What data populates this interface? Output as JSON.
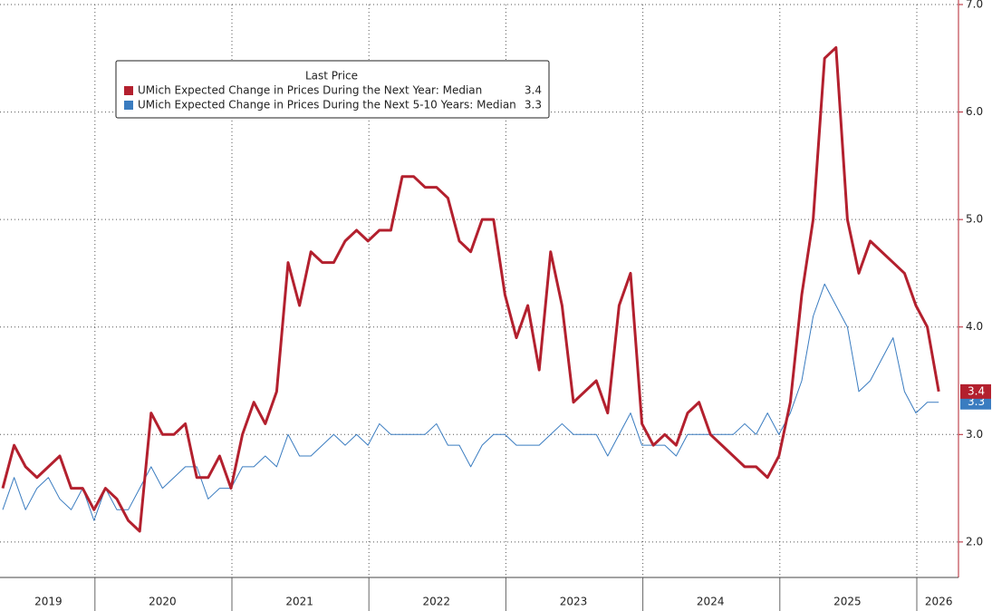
{
  "chart_data": {
    "type": "line",
    "categories": [
      null,
      null,
      null,
      null,
      "2019",
      null,
      null,
      null,
      null,
      null,
      null,
      null,
      null,
      null,
      "2020",
      null,
      null,
      null,
      null,
      null,
      null,
      null,
      null,
      null,
      null,
      null,
      "2021",
      null,
      null,
      null,
      null,
      null,
      null,
      null,
      null,
      null,
      null,
      null,
      "2022",
      null,
      null,
      null,
      null,
      null,
      null,
      null,
      null,
      null,
      null,
      null,
      "2023",
      null,
      null,
      null,
      null,
      null,
      null,
      null,
      null,
      null,
      null,
      null,
      "2024",
      null,
      null,
      null,
      null,
      null,
      null,
      null,
      null,
      null,
      null,
      null,
      "2025",
      null,
      null,
      null,
      null,
      null,
      null,
      null,
      "2026"
    ],
    "series": [
      {
        "name": "UMich Expected Change in Prices During the Next Year: Median",
        "color": "#b3202e",
        "values": [
          2.5,
          2.9,
          2.7,
          2.6,
          2.7,
          2.8,
          2.5,
          2.5,
          2.3,
          2.5,
          2.4,
          2.2,
          2.1,
          3.2,
          3.0,
          3.0,
          3.1,
          2.6,
          2.6,
          2.8,
          2.5,
          3.0,
          3.3,
          3.1,
          3.4,
          4.6,
          4.2,
          4.7,
          4.6,
          4.6,
          4.8,
          4.9,
          4.8,
          4.9,
          4.9,
          5.4,
          5.4,
          5.3,
          5.3,
          5.2,
          4.8,
          4.7,
          5.0,
          5.0,
          4.3,
          3.9,
          4.2,
          3.6,
          4.7,
          4.2,
          3.3,
          3.4,
          3.5,
          3.2,
          4.2,
          4.5,
          3.1,
          2.9,
          3.0,
          2.9,
          3.2,
          3.3,
          3.0,
          2.9,
          2.8,
          2.7,
          2.7,
          2.6,
          2.8,
          3.3,
          4.3,
          5.0,
          6.5,
          6.6,
          5.0,
          4.5,
          4.8,
          4.7,
          4.6,
          4.5,
          4.2,
          4.0,
          3.4
        ]
      },
      {
        "name": "UMich Expected Change in Prices During the Next 5-10 Years: Median",
        "color": "#3a7cc0",
        "values": [
          2.3,
          2.6,
          2.3,
          2.5,
          2.6,
          2.4,
          2.3,
          2.5,
          2.2,
          2.5,
          2.3,
          2.3,
          2.5,
          2.7,
          2.5,
          2.6,
          2.7,
          2.7,
          2.4,
          2.5,
          2.5,
          2.7,
          2.7,
          2.8,
          2.7,
          3.0,
          2.8,
          2.8,
          2.9,
          3.0,
          2.9,
          3.0,
          2.9,
          3.1,
          3.0,
          3.0,
          3.0,
          3.0,
          3.1,
          2.9,
          2.9,
          2.7,
          2.9,
          3.0,
          3.0,
          2.9,
          2.9,
          2.9,
          3.0,
          3.1,
          3.0,
          3.0,
          3.0,
          2.8,
          3.0,
          3.2,
          2.9,
          2.9,
          2.9,
          2.8,
          3.0,
          3.0,
          3.0,
          3.0,
          3.0,
          3.1,
          3.0,
          3.2,
          3.0,
          3.2,
          3.5,
          4.1,
          4.4,
          4.2,
          4.0,
          3.4,
          3.5,
          3.7,
          3.9,
          3.4,
          3.2,
          3.3,
          3.3
        ]
      }
    ],
    "legend_title": "Last Price",
    "ylim": [
      1.67,
      7.0
    ],
    "yticks": [
      {
        "value": 2,
        "label": "2.0"
      },
      {
        "value": 3,
        "label": "3.0"
      },
      {
        "value": 4,
        "label": "4.0"
      },
      {
        "value": 5,
        "label": "5.0"
      },
      {
        "value": 6,
        "label": "6.0"
      },
      {
        "value": 7,
        "label": "7.0"
      }
    ],
    "grid": true
  }
}
